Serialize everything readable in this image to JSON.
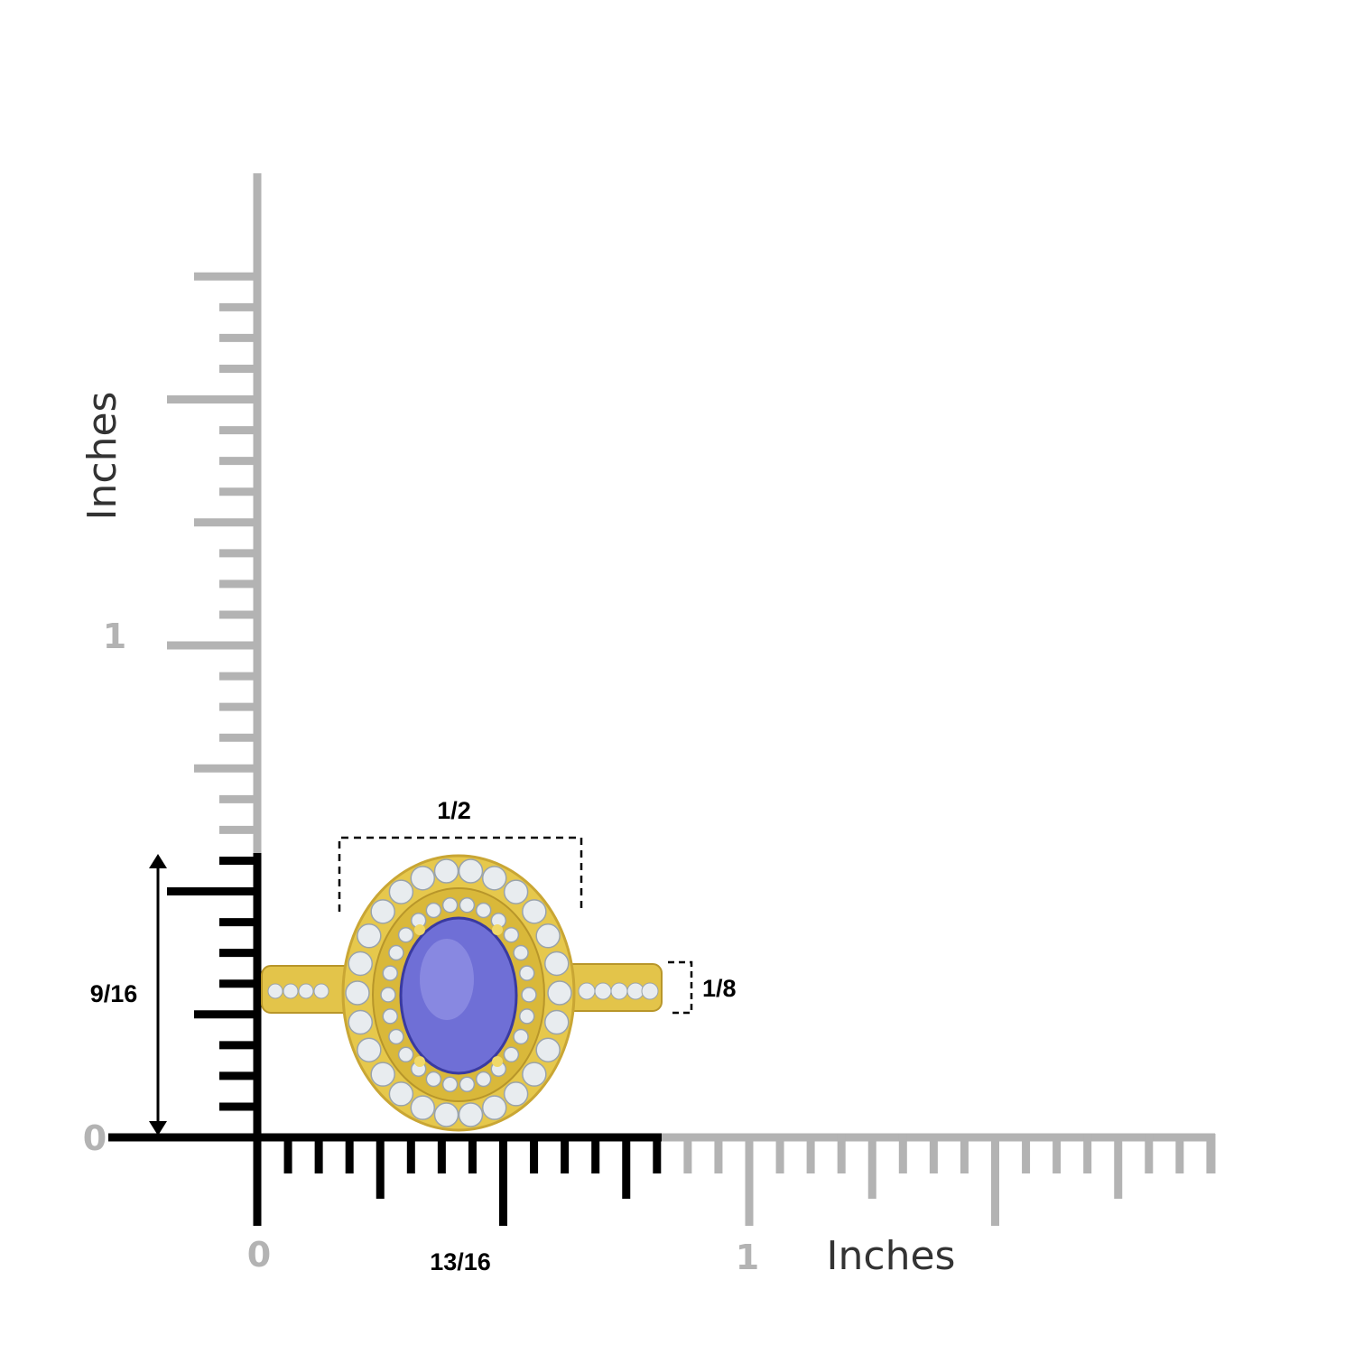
{
  "rulers": {
    "vertical_unit": "Inches",
    "horizontal_unit": "Inches",
    "vertical_ticks": {
      "zero": "0",
      "one": "1"
    },
    "horizontal_ticks": {
      "zero": "0",
      "one": "1"
    },
    "ruler_color": "#b3b3b3",
    "highlight_color": "#000000"
  },
  "dimensions": {
    "center_width": "1/2",
    "band_width": "1/8",
    "height": "9/16",
    "length": "13/16"
  },
  "product": {
    "gem_color": "#6f6fd6",
    "metal_color": "#e0c040"
  }
}
